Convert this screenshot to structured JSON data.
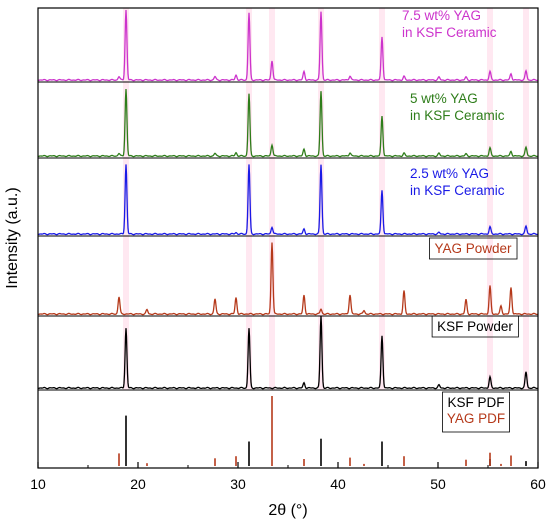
{
  "chart_data": {
    "type": "line",
    "title": "",
    "xlabel": "2θ (°)",
    "ylabel": "Intensity (a.u.)",
    "xlim": [
      10,
      60
    ],
    "x_ticks": [
      10,
      20,
      30,
      40,
      50,
      60
    ],
    "grid": false,
    "series": [
      {
        "name": "7.5 wt% YAG in KSF Ceramic",
        "label_lines": [
          "7.5 wt% YAG",
          "in KSF Ceramic"
        ],
        "color": "#cc33cc",
        "style": "line",
        "peaks": [
          [
            18.1,
            0.05
          ],
          [
            18.8,
            1.0
          ],
          [
            27.7,
            0.05
          ],
          [
            29.8,
            0.07
          ],
          [
            31.1,
            0.96
          ],
          [
            33.4,
            0.28
          ],
          [
            36.6,
            0.12
          ],
          [
            38.3,
            0.98
          ],
          [
            41.2,
            0.06
          ],
          [
            44.4,
            0.62
          ],
          [
            46.6,
            0.05
          ],
          [
            50.1,
            0.04
          ],
          [
            52.8,
            0.04
          ],
          [
            55.2,
            0.12
          ],
          [
            57.3,
            0.09
          ],
          [
            58.8,
            0.13
          ]
        ],
        "shaded_peaks": [
          18.8,
          31.1,
          33.4,
          38.3,
          44.4,
          55.2,
          58.8
        ]
      },
      {
        "name": "5 wt% YAG in KSF Ceramic",
        "label_lines": [
          "5 wt% YAG",
          "in KSF Ceramic"
        ],
        "color": "#2e7d1a",
        "style": "line",
        "peaks": [
          [
            18.1,
            0.04
          ],
          [
            18.8,
            1.0
          ],
          [
            27.7,
            0.04
          ],
          [
            29.8,
            0.05
          ],
          [
            31.1,
            0.93
          ],
          [
            33.4,
            0.17
          ],
          [
            36.6,
            0.1
          ],
          [
            38.3,
            0.97
          ],
          [
            41.2,
            0.05
          ],
          [
            44.4,
            0.6
          ],
          [
            46.6,
            0.04
          ],
          [
            50.1,
            0.04
          ],
          [
            52.8,
            0.03
          ],
          [
            55.2,
            0.12
          ],
          [
            57.3,
            0.07
          ],
          [
            58.8,
            0.13
          ]
        ],
        "shaded_peaks": [
          18.8,
          31.1,
          33.4,
          38.3,
          44.4,
          55.2,
          58.8
        ]
      },
      {
        "name": "2.5 wt% YAG in KSF Ceramic",
        "label_lines": [
          "2.5 wt% YAG",
          "in KSF Ceramic"
        ],
        "color": "#1a1ae6",
        "style": "line",
        "peaks": [
          [
            18.8,
            0.98
          ],
          [
            29.8,
            0.02
          ],
          [
            31.1,
            0.98
          ],
          [
            33.4,
            0.1
          ],
          [
            36.6,
            0.07
          ],
          [
            38.3,
            0.98
          ],
          [
            44.4,
            0.62
          ],
          [
            50.1,
            0.02
          ],
          [
            55.2,
            0.1
          ],
          [
            58.8,
            0.11
          ]
        ],
        "shaded_peaks": [
          18.8,
          31.1,
          33.4,
          38.3,
          44.4,
          55.2,
          58.8
        ]
      },
      {
        "name": "YAG Powder",
        "label_lines": [
          "YAG Powder"
        ],
        "color": "#b5391a",
        "style": "line",
        "peaks": [
          [
            18.1,
            0.24
          ],
          [
            20.9,
            0.06
          ],
          [
            27.7,
            0.21
          ],
          [
            29.8,
            0.23
          ],
          [
            33.4,
            1.0
          ],
          [
            36.6,
            0.26
          ],
          [
            38.3,
            0.07
          ],
          [
            41.2,
            0.27
          ],
          [
            42.6,
            0.05
          ],
          [
            46.6,
            0.32
          ],
          [
            52.8,
            0.2
          ],
          [
            55.2,
            0.39
          ],
          [
            56.3,
            0.11
          ],
          [
            57.3,
            0.37
          ]
        ],
        "shaded_peaks": [
          18.8,
          31.1,
          33.4,
          38.3,
          44.4,
          55.2,
          58.8
        ]
      },
      {
        "name": "KSF Powder",
        "label_lines": [
          "KSF Powder"
        ],
        "color": "#000000",
        "style": "line",
        "peaks": [
          [
            18.8,
            0.82
          ],
          [
            31.1,
            0.82
          ],
          [
            36.6,
            0.07
          ],
          [
            38.3,
            0.99
          ],
          [
            44.4,
            0.72
          ],
          [
            50.1,
            0.04
          ],
          [
            55.2,
            0.15
          ],
          [
            58.8,
            0.22
          ]
        ],
        "shaded_peaks": [
          18.8,
          31.1,
          33.4,
          38.3,
          44.4,
          55.2,
          58.8
        ]
      },
      {
        "name": "KSF PDF",
        "label_lines": [
          "KSF PDF"
        ],
        "color": "#000000",
        "style": "stick",
        "peaks": [
          [
            18.8,
            0.72
          ],
          [
            31.1,
            0.35
          ],
          [
            38.3,
            0.39
          ],
          [
            44.4,
            0.35
          ],
          [
            55.2,
            0.1
          ],
          [
            58.8,
            0.07
          ]
        ]
      },
      {
        "name": "YAG PDF",
        "label_lines": [
          "YAG PDF"
        ],
        "color": "#b5391a",
        "style": "stick",
        "peaks": [
          [
            18.1,
            0.18
          ],
          [
            20.9,
            0.04
          ],
          [
            27.7,
            0.11
          ],
          [
            29.8,
            0.14
          ],
          [
            33.4,
            1.0
          ],
          [
            36.6,
            0.1
          ],
          [
            41.2,
            0.12
          ],
          [
            42.6,
            0.03
          ],
          [
            46.6,
            0.14
          ],
          [
            52.8,
            0.09
          ],
          [
            55.2,
            0.19
          ],
          [
            56.3,
            0.03
          ],
          [
            57.3,
            0.15
          ]
        ]
      }
    ]
  }
}
